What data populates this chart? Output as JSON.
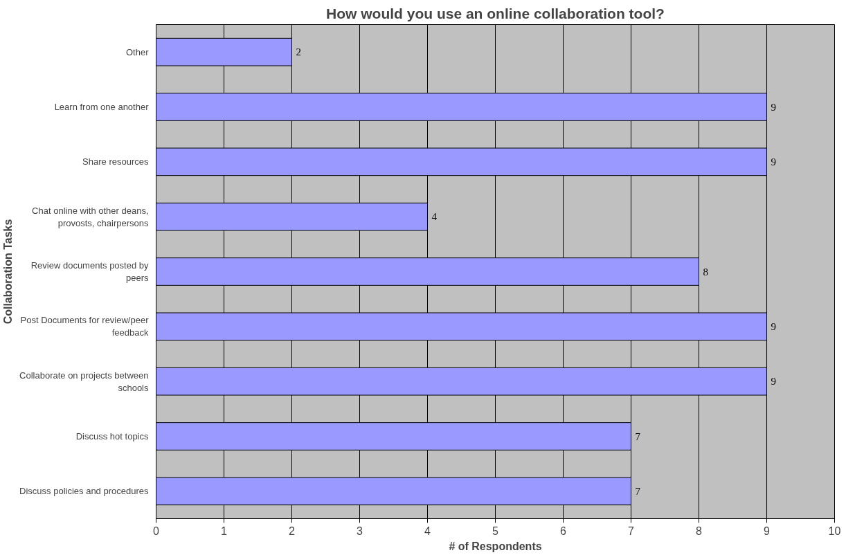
{
  "chart_data": {
    "type": "bar",
    "orientation": "horizontal",
    "title": "How would you use an online collaboration tool?",
    "xlabel": "# of Respondents",
    "ylabel": "Collaboration Tasks",
    "categories": [
      "Other",
      "Learn from one another",
      "Share resources",
      "Chat online with other deans, provosts, chairpersons",
      "Review documents posted by peers",
      "Post Documents for review/peer feedback",
      "Collaborate on projects between schools",
      "Discuss hot topics",
      "Discuss policies and procedures"
    ],
    "values": [
      2,
      9,
      9,
      4,
      8,
      9,
      9,
      7,
      7
    ],
    "color": "#9999ff",
    "xlim": [
      0,
      10
    ],
    "xticks": [
      0,
      1,
      2,
      3,
      4,
      5,
      6,
      7,
      8,
      9,
      10
    ],
    "grid": "x",
    "data_labels": true
  }
}
